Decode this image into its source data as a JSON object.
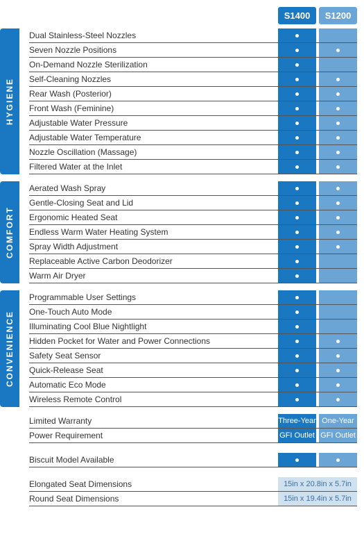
{
  "columns": {
    "col1": {
      "label": "S1400",
      "bg": "#1a78c2"
    },
    "col2": {
      "label": "S1200",
      "bg": "#6ba5d6"
    }
  },
  "sections": [
    {
      "title": "HYGIENE",
      "rows": [
        {
          "label": "Dual Stainless-Steel Nozzles",
          "c1": "dot",
          "c2": ""
        },
        {
          "label": "Seven Nozzle Positions",
          "c1": "dot",
          "c2": "dot"
        },
        {
          "label": "On-Demand Nozzle Sterilization",
          "c1": "dot",
          "c2": ""
        },
        {
          "label": "Self-Cleaning Nozzles",
          "c1": "dot",
          "c2": "dot"
        },
        {
          "label": "Rear Wash (Posterior)",
          "c1": "dot",
          "c2": "dot"
        },
        {
          "label": "Front Wash (Feminine)",
          "c1": "dot",
          "c2": "dot"
        },
        {
          "label": "Adjustable Water Pressure",
          "c1": "dot",
          "c2": "dot"
        },
        {
          "label": "Adjustable Water Temperature",
          "c1": "dot",
          "c2": "dot"
        },
        {
          "label": "Nozzle Oscillation (Massage)",
          "c1": "dot",
          "c2": "dot"
        },
        {
          "label": "Filtered Water at the Inlet",
          "c1": "dot",
          "c2": "dot"
        }
      ]
    },
    {
      "title": "COMFORT",
      "rows": [
        {
          "label": "Aerated Wash Spray",
          "c1": "dot",
          "c2": "dot"
        },
        {
          "label": "Gentle-Closing Seat and Lid",
          "c1": "dot",
          "c2": "dot"
        },
        {
          "label": "Ergonomic Heated Seat",
          "c1": "dot",
          "c2": "dot"
        },
        {
          "label": "Endless Warm Water Heating System",
          "c1": "dot",
          "c2": "dot"
        },
        {
          "label": "Spray Width Adjustment",
          "c1": "dot",
          "c2": "dot"
        },
        {
          "label": "Replaceable Active Carbon Deodorizer",
          "c1": "dot",
          "c2": ""
        },
        {
          "label": "Warm Air Dryer",
          "c1": "dot",
          "c2": ""
        }
      ]
    },
    {
      "title": "CONVENIENCE",
      "rows": [
        {
          "label": "Programmable User Settings",
          "c1": "dot",
          "c2": ""
        },
        {
          "label": "One-Touch Auto Mode",
          "c1": "dot",
          "c2": ""
        },
        {
          "label": "Illuminating Cool Blue Nightlight",
          "c1": "dot",
          "c2": ""
        },
        {
          "label": "Hidden Pocket for Water and Power Connections",
          "c1": "dot",
          "c2": "dot"
        },
        {
          "label": "Safety Seat Sensor",
          "c1": "dot",
          "c2": "dot"
        },
        {
          "label": "Quick-Release Seat",
          "c1": "dot",
          "c2": "dot"
        },
        {
          "label": "Automatic Eco Mode",
          "c1": "dot",
          "c2": "dot"
        },
        {
          "label": "Wireless Remote Control",
          "c1": "dot",
          "c2": "dot"
        }
      ]
    }
  ],
  "warranty_rows": [
    {
      "label": "Limited Warranty",
      "c1": "Three-Year",
      "c2": "One-Year"
    },
    {
      "label": "Power Requirement",
      "c1": "GFI Outlet",
      "c2": "GFI Outlet"
    }
  ],
  "biscuit_row": {
    "label": "Biscuit Model Available",
    "c1": "dot",
    "c2": "dot"
  },
  "dimension_rows": [
    {
      "label": "Elongated Seat Dimensions",
      "value": "15in x 20.8in x 5.7in"
    },
    {
      "label": "Round Seat Dimensions",
      "value": "15in x 19.4in x 5.7in"
    }
  ],
  "style": {
    "tab_bg": "#1a78c2",
    "merged_bg": "#cfe0ef",
    "merged_text": "#3a6fa0",
    "row_border": "#555555"
  }
}
